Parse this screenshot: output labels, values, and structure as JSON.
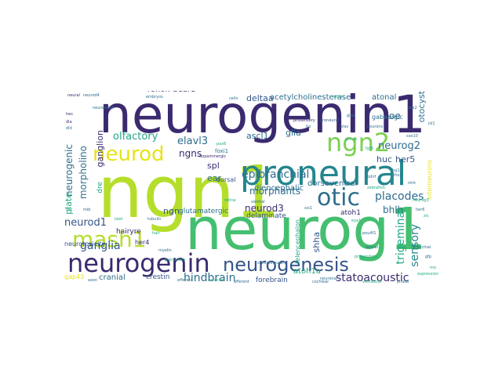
{
  "colors": {
    "dark_purple": "#3b2a6f",
    "navy": "#2e4a87",
    "slate_blue": "#34558a",
    "teal_blue": "#2d6e8e",
    "teal": "#24868e",
    "sea_green": "#22a884",
    "green": "#44bf70",
    "light_green": "#7ad151",
    "lime": "#b5de2b",
    "yellow": "#e6e419"
  },
  "words": {
    "neurogenin1": "neurogenin1",
    "ngn1": "ngn1",
    "neurog1": "neurog1",
    "proneural": "proneural",
    "neurogenin": "neurogenin",
    "neurogenesis": "neurogenesis",
    "ngn2": "ngn2",
    "neurod": "neurod",
    "otic": "otic",
    "mash1": "mash1",
    "ganglia": "ganglia",
    "placodes": "placodes",
    "epibranchial": "epibranchial",
    "hindbrain": "hindbrain",
    "statoacoustic": "statoacoustic",
    "neurod1": "neurod1",
    "neurod3": "neurod3",
    "neurog2": "neurog2",
    "olfactory": "olfactory",
    "elavl3": "elavl3",
    "ngns": "ngns",
    "morphants": "morphants",
    "bhlh": "bhlh",
    "huc": "huc",
    "her5": "her5",
    "glia": "glia",
    "ascl1": "ascl1",
    "deltaa": "deltaa",
    "acetylcholinesterase": "acetylcholinesterase",
    "atonal": "atonal",
    "rohon_beard": "rohon-beard",
    "orns": "orns",
    "trigeminal": "trigeminal",
    "sensory": "sensory",
    "shha": "shha",
    "ngn": "ngn",
    "ear": "ear",
    "spl": "spl",
    "glutamatergic": "glutamatergic",
    "dorsoventral": "dorsoventral",
    "diencephalic": "diencephalic",
    "cranial": "cranial",
    "crestin": "crestin",
    "forebrain": "forebrain",
    "delaminate": "delaminate",
    "atoh1a": "atoh1a",
    "atoh1": "atoh1",
    "hairyre": "hairyre",
    "her4": "her4",
    "neurotoxicity": "neurotoxicity",
    "morpholino": "morpholino",
    "neurogenic": "neurogenic",
    "ganglion": "ganglion",
    "plate": "plate",
    "otocyst": "otocyst",
    "oe": "oe",
    "gap43": "gap43",
    "gabaergic": "gabaergic",
    "dorsal": "dorsal",
    "foxi1": "foxi1",
    "dre": "dre",
    "telencephalon": "telencephalon",
    "interneurons": "interneurons",
    "neural": "neural",
    "ventral": "ventral",
    "proneural_small": "proneural",
    "glial": "glial",
    "notch": "notch",
    "sox2": "sox2",
    "sox10": "sox10",
    "prosensory": "prosensory",
    "tuj1": "tuj1",
    "zebrafish": "zebrafish",
    "dopaminergic": "dopaminergic",
    "retina": "retina",
    "lateral": "lateral",
    "neuronal": "neuronal",
    "progenitors": "progenitors",
    "tubulin": "tubulin",
    "islet": "islet",
    "myelin": "myelin",
    "precursors": "precursors",
    "sensorineural": "sensorineural",
    "neuromast": "neuromast",
    "hair": "hair",
    "lhx2": "lhx2",
    "pax6": "pax6",
    "elav": "elav",
    "tlx": "tlx",
    "fgf8": "fgf8",
    "bdnf": "bdnf",
    "ntrk": "ntrk",
    "six1": "six1",
    "eya1": "eya1",
    "pou4f1": "pou4f1",
    "isl1": "isl1",
    "hes": "hes",
    "dla": "dla",
    "dld": "dld",
    "tbx": "tbx",
    "mib": "mib",
    "neurod4": "neurod4",
    "neurog3": "neurog3",
    "her6": "her6",
    "zic": "zic",
    "gfp": "gfp",
    "mo": "mo",
    "axon": "axon",
    "somite": "somite",
    "efferent": "efferent",
    "afferent": "afferent",
    "cochlear": "cochlear",
    "vestibular": "vestibular",
    "pineal": "pineal",
    "branchial": "branchial",
    "expression": "expression",
    "embryos": "embryos",
    "cells": "cells",
    "genes": "genes",
    "neurons": "neurons"
  }
}
